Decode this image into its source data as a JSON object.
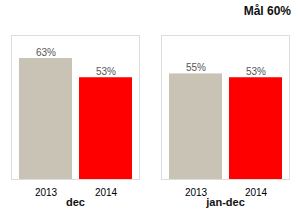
{
  "chart_data": {
    "type": "bar",
    "categories": [
      "dec",
      "jan-dec"
    ],
    "series": [
      {
        "name": "2013",
        "color": "#c8c3b5",
        "values": [
          63,
          55
        ],
        "value_labels": [
          "63%",
          "55%"
        ]
      },
      {
        "name": "2014",
        "color": "#ff0000",
        "values": [
          53,
          53
        ],
        "value_labels": [
          "53%",
          "53%"
        ]
      }
    ],
    "annotation": "Mål 60%",
    "ylim": [
      0,
      75
    ],
    "data_labels": true,
    "tick_labels": "x",
    "grid": false
  }
}
